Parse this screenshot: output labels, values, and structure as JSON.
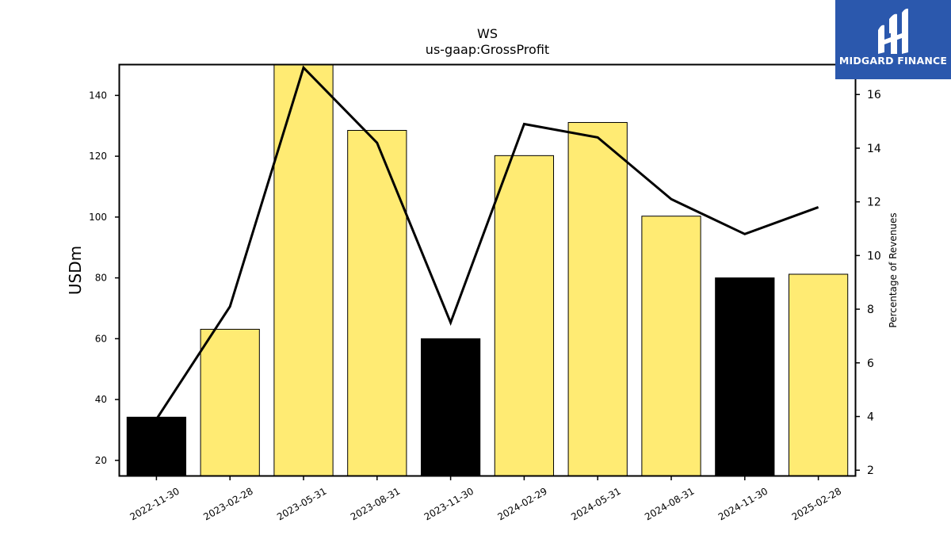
{
  "logo": {
    "text": "MIDGARD FINANCE",
    "bg_color": "#2b58ad"
  },
  "chart_data": {
    "type": "bar",
    "title": "WS",
    "subtitle": "us-gaap:GrossProfit",
    "ylabel": "USDm",
    "y2label": "Percentage of Revenues",
    "categories": [
      "2022-11-30",
      "2023-02-28",
      "2023-05-31",
      "2023-08-31",
      "2023-11-30",
      "2024-02-29",
      "2024-05-31",
      "2024-08-31",
      "2024-11-30",
      "2025-02-28"
    ],
    "series": [
      {
        "values": [
          34.2,
          63.1,
          151.0,
          128.5,
          60.0,
          120.2,
          131.1,
          100.3,
          80.0,
          81.2
        ],
        "bar_colors": [
          "#000000",
          "#ffeb73",
          "#ffeb73",
          "#ffeb73",
          "#000000",
          "#ffeb73",
          "#ffeb73",
          "#ffeb73",
          "#000000",
          "#ffeb73"
        ],
        "axis": "left"
      },
      {
        "values": [
          3.9,
          8.1,
          17.0,
          14.2,
          7.5,
          14.9,
          14.4,
          12.1,
          10.8,
          11.8
        ],
        "color": "#000000",
        "axis": "right",
        "kind": "line"
      }
    ],
    "ylim": [
      15,
      150
    ],
    "y2lim": [
      1.8,
      17.1
    ],
    "yticks": [
      20,
      40,
      60,
      80,
      100,
      120,
      140
    ],
    "y2ticks": [
      2,
      4,
      6,
      8,
      10,
      12,
      14,
      16
    ],
    "grid": false,
    "legend": "none"
  }
}
